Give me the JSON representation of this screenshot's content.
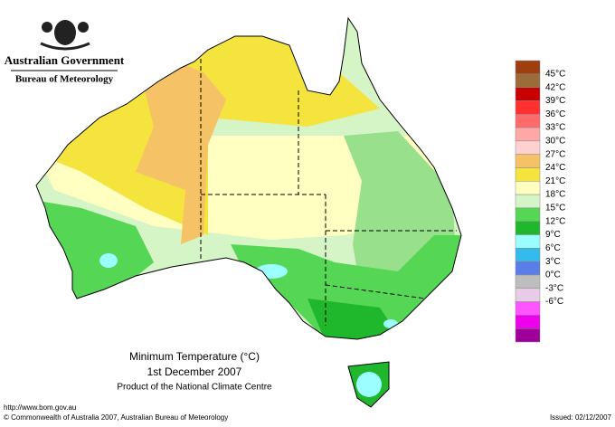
{
  "header": {
    "government": "Australian Government",
    "agency": "Bureau of Meteorology"
  },
  "map": {
    "title": "Minimum Temperature (°C)",
    "date": "1st December 2007",
    "credit": "Product of the National Climate Centre"
  },
  "legend": {
    "colors": [
      "#9e3f10",
      "#9c6b3a",
      "#c80000",
      "#ff3030",
      "#ff6b6b",
      "#ffa8a8",
      "#ffd0d0",
      "#f5c265",
      "#f5e33e",
      "#ffffc2",
      "#d6f5c6",
      "#55d655",
      "#1fb82c",
      "#9cffff",
      "#33bbee",
      "#5a7ee8",
      "#bdbdbd",
      "#e6cce6",
      "#ff55ff",
      "#ee00ee",
      "#a0009a"
    ],
    "labels": [
      "45°C",
      "42°C",
      "39°C",
      "36°C",
      "33°C",
      "30°C",
      "27°C",
      "24°C",
      "21°C",
      "18°C",
      "15°C",
      "12°C",
      "9°C",
      "6°C",
      "3°C",
      "0°C",
      "-3°C",
      "-6°C"
    ]
  },
  "footer": {
    "url": "http://www.bom.gov.au",
    "copyright": "© Commonwealth of Australia 2007, Australian Bureau of Meteorology",
    "issued": "Issued: 02/12/2007"
  }
}
